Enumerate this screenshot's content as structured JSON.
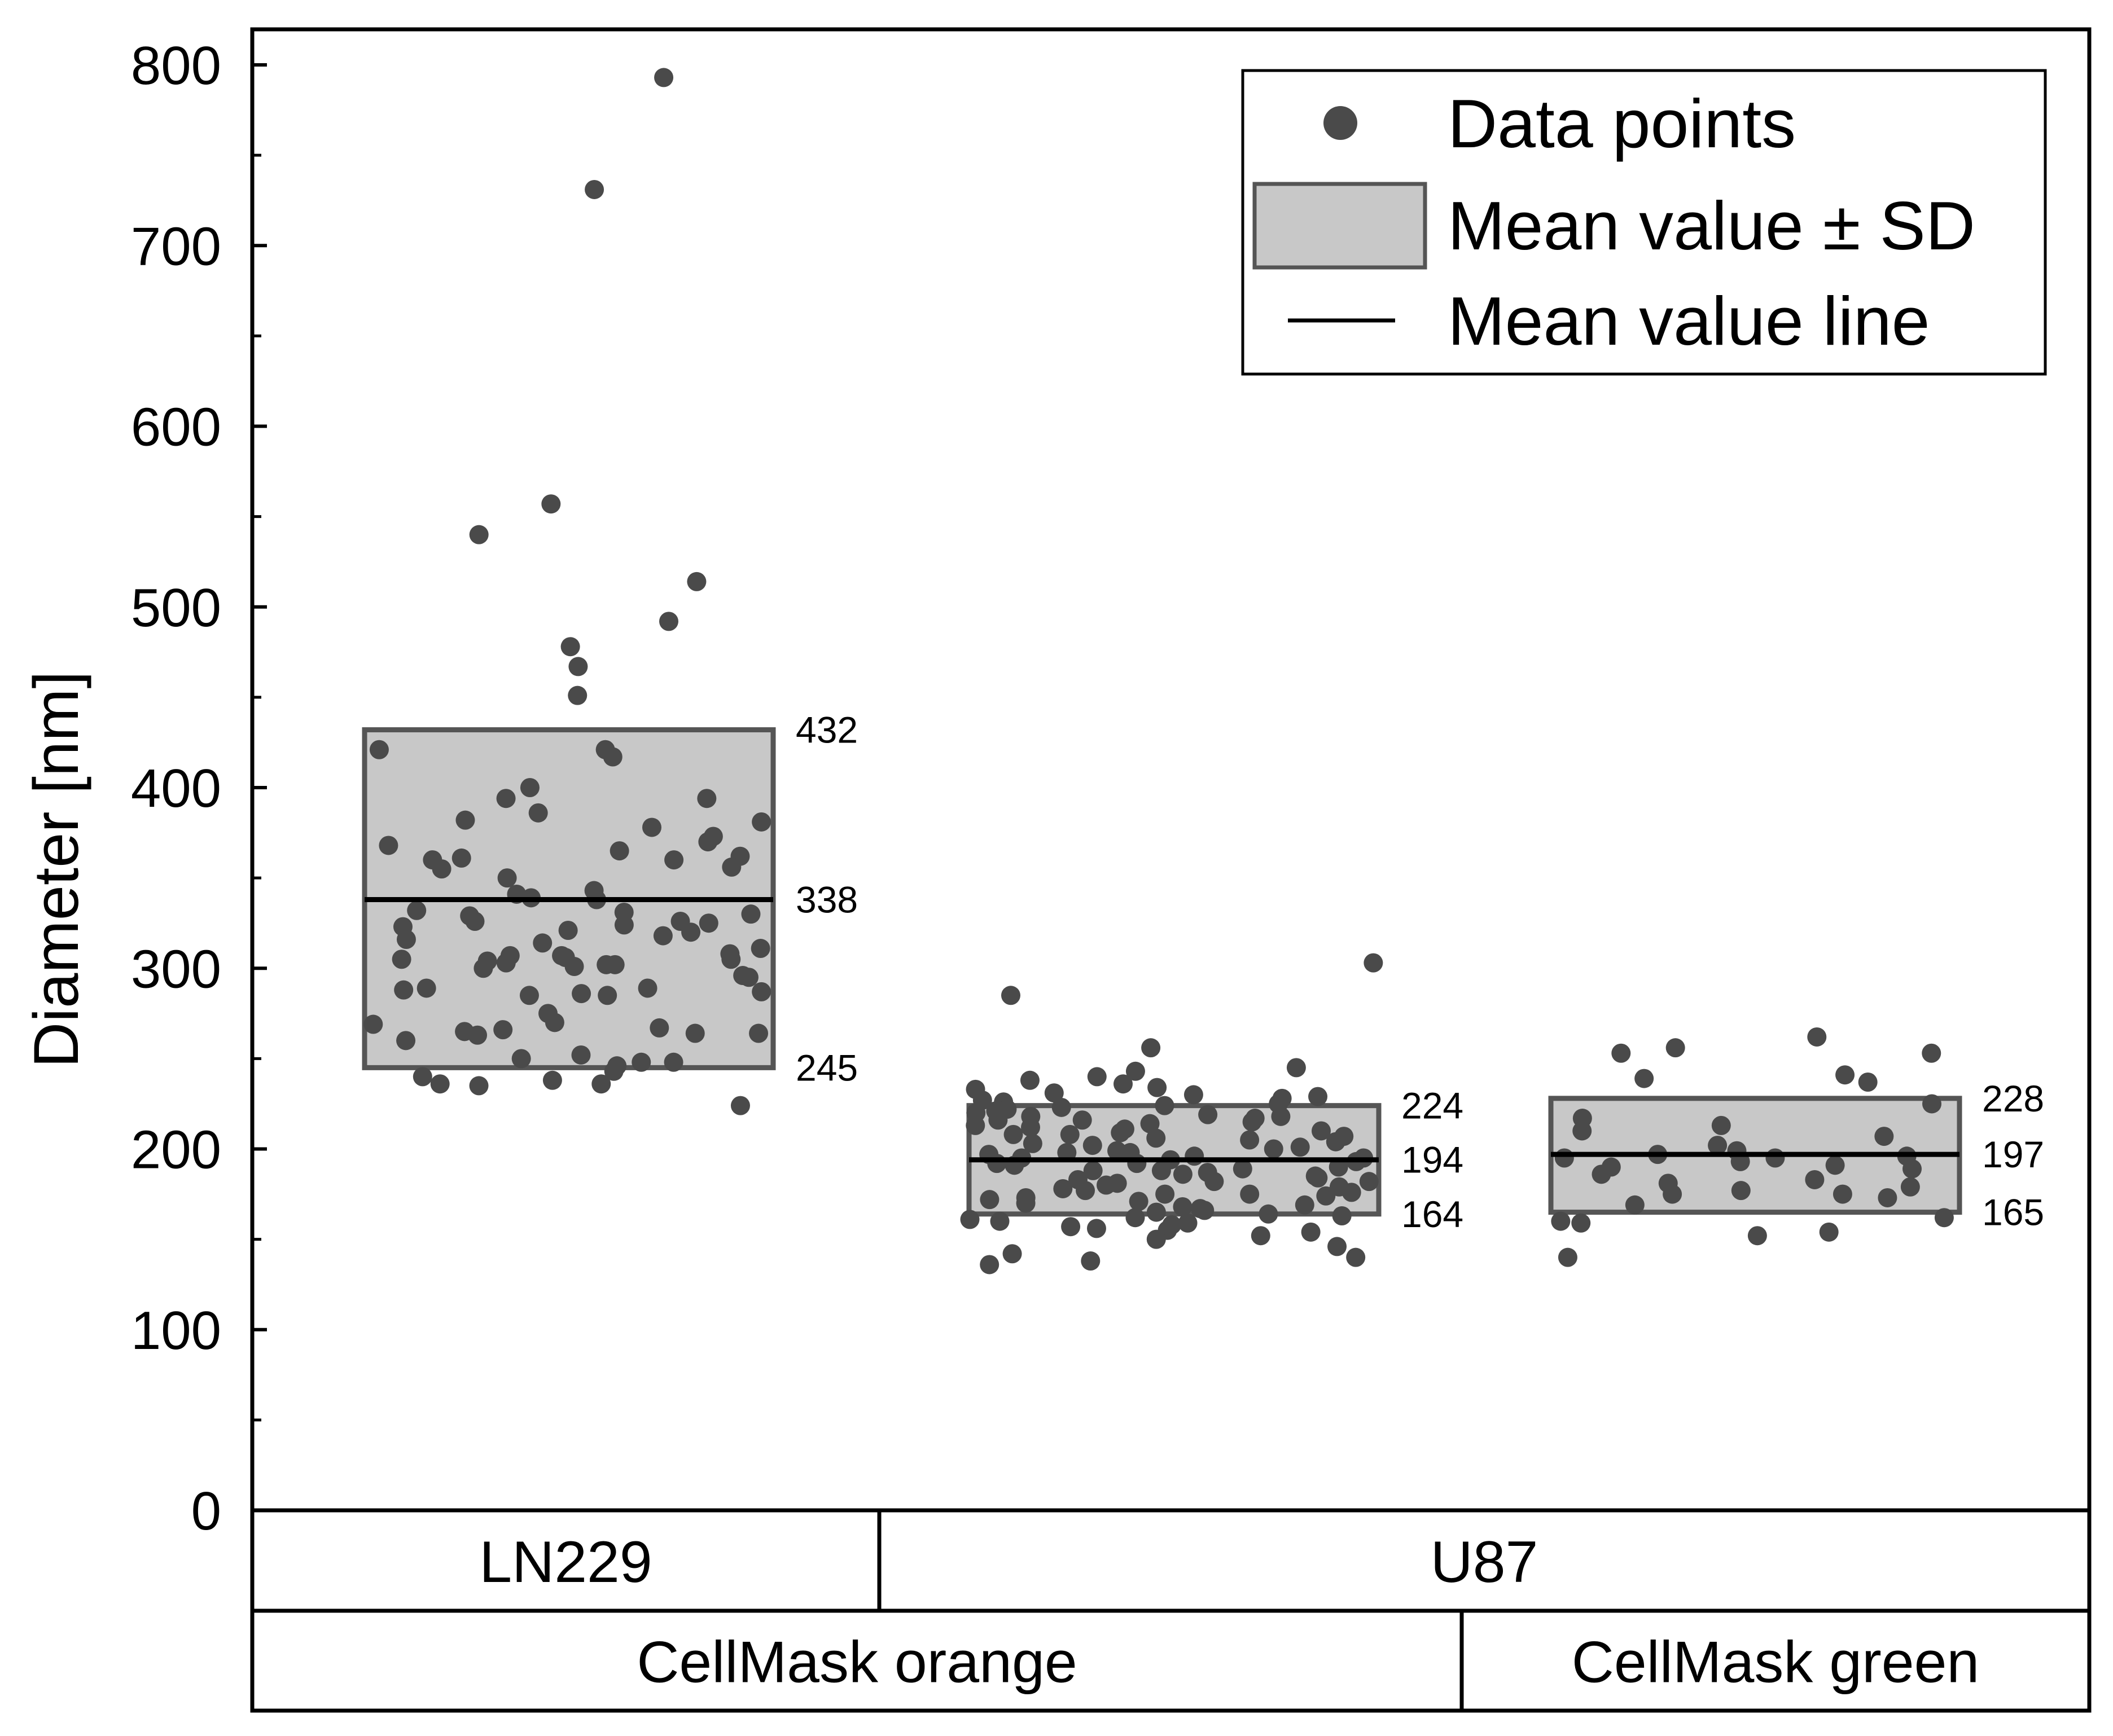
{
  "chart_data": {
    "type": "scatter",
    "ylabel": "Diameter [nm]",
    "ylim": [
      0,
      800
    ],
    "yticks": [
      0,
      100,
      200,
      300,
      400,
      500,
      600,
      700,
      800
    ],
    "grid": false,
    "legend_position": "top-right",
    "colors": {
      "points": "#4a4a4a",
      "box_fill": "#c8c8c8",
      "box_stroke": "#555555",
      "mean_line": "#000000",
      "axis": "#000000"
    },
    "legend": [
      {
        "kind": "points",
        "label": "Data points"
      },
      {
        "kind": "box",
        "label": "Mean value ± SD"
      },
      {
        "kind": "line",
        "label": "Mean value line"
      }
    ],
    "x_category_rows": [
      [
        {
          "label": "LN229",
          "span": [
            0,
            1
          ]
        },
        {
          "label": "U87",
          "span": [
            1,
            3
          ]
        }
      ],
      [
        {
          "label": "CellMask orange",
          "span": [
            0,
            2
          ]
        },
        {
          "label": "CellMask green",
          "span": [
            2,
            3
          ]
        }
      ]
    ],
    "series": [
      {
        "cell_line": "LN229",
        "stain": "CellMask orange",
        "mean": 338,
        "mean_plus_sd": 432,
        "mean_minus_sd": 245,
        "points": [
          793,
          731,
          557,
          540,
          514,
          492,
          478,
          467,
          451,
          421,
          421,
          417,
          400,
          394,
          394,
          386,
          382,
          381,
          378,
          373,
          370,
          368,
          365,
          362,
          361,
          360,
          360,
          356,
          355,
          350,
          343,
          341,
          339,
          338,
          332,
          331,
          330,
          329,
          326,
          326,
          325,
          324,
          323,
          321,
          320,
          318,
          316,
          314,
          311,
          308,
          307,
          307,
          306,
          305,
          305,
          304,
          303,
          302,
          302,
          301,
          300,
          296,
          295,
          289,
          289,
          288,
          287,
          286,
          285,
          285,
          275,
          270,
          269,
          267,
          266,
          265,
          264,
          264,
          263,
          260,
          252,
          250,
          248,
          248,
          246,
          243,
          240,
          238,
          236,
          236,
          235,
          224
        ]
      },
      {
        "cell_line": "U87",
        "stain": "CellMask orange",
        "mean": 194,
        "mean_plus_sd": 224,
        "mean_minus_sd": 164,
        "points": [
          303,
          285,
          256,
          245,
          243,
          240,
          238,
          236,
          234,
          233,
          231,
          230,
          229,
          228,
          227,
          226,
          225,
          224,
          223,
          222,
          221,
          220,
          219,
          218,
          218,
          217,
          216,
          216,
          215,
          214,
          213,
          212,
          211,
          210,
          209,
          208,
          208,
          207,
          206,
          205,
          204,
          203,
          202,
          201,
          200,
          199,
          198,
          198,
          197,
          196,
          195,
          195,
          194,
          193,
          192,
          192,
          191,
          190,
          189,
          188,
          188,
          187,
          186,
          185,
          184,
          183,
          182,
          182,
          181,
          180,
          179,
          178,
          177,
          176,
          175,
          175,
          174,
          173,
          172,
          171,
          170,
          169,
          168,
          167,
          166,
          165,
          164,
          163,
          162,
          161,
          160,
          159,
          158,
          157,
          156,
          155,
          154,
          152,
          150,
          146,
          142,
          140,
          138,
          136
        ]
      },
      {
        "cell_line": "U87",
        "stain": "CellMask green",
        "mean": 197,
        "mean_plus_sd": 228,
        "mean_minus_sd": 165,
        "points": [
          262,
          256,
          253,
          253,
          241,
          239,
          237,
          225,
          217,
          213,
          210,
          207,
          202,
          199,
          197,
          196,
          195,
          195,
          193,
          191,
          190,
          189,
          186,
          183,
          181,
          179,
          177,
          175,
          175,
          173,
          169,
          162,
          160,
          159,
          154,
          152,
          140
        ]
      }
    ]
  }
}
